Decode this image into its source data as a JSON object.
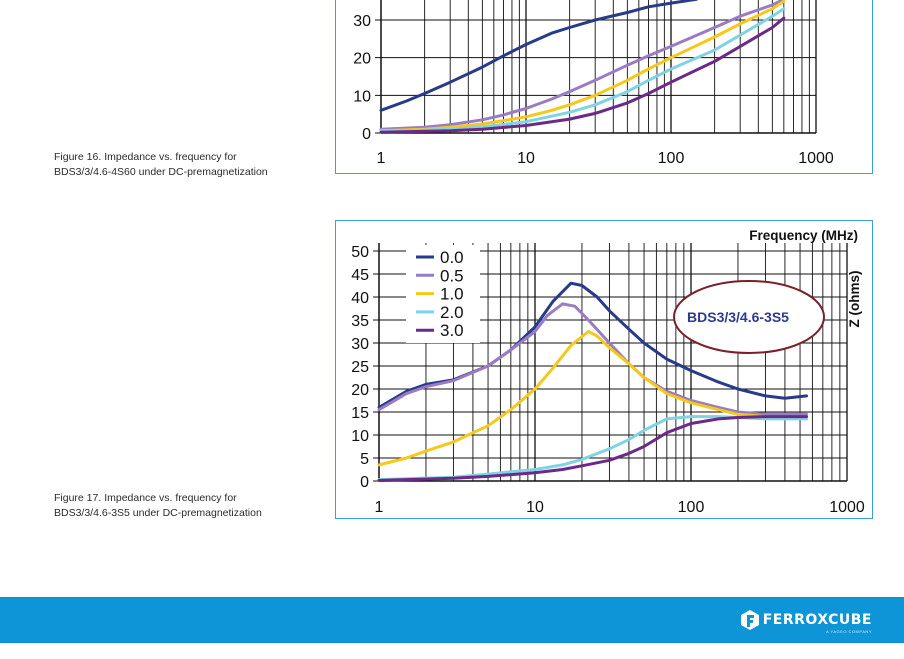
{
  "figures": [
    {
      "caption_line1": "Figure 16. Impedance vs. frequency for",
      "caption_line2": "BDS3/3/4.6-4S60 under DC-premagnetization"
    },
    {
      "caption_line1": "Figure 17. Impedance vs. frequency for",
      "caption_line2": "BDS3/3/4.6-3S5 under DC-premagnetization"
    }
  ],
  "chart_data": [
    {
      "type": "line",
      "title": "",
      "xlabel": "",
      "ylabel": "",
      "x_scale": "log",
      "xlim": [
        1,
        1000
      ],
      "x_tick_labels": [
        "1",
        "10",
        "100",
        "1000"
      ],
      "y_tick_labels": [
        "0",
        "10",
        "20",
        "30"
      ],
      "grid": true,
      "series": [
        {
          "color": "#283a8a",
          "points": [
            [
              1,
              6
            ],
            [
              1.5,
              8.5
            ],
            [
              2,
              10.5
            ],
            [
              3,
              13.5
            ],
            [
              5,
              17.5
            ],
            [
              7,
              20.5
            ],
            [
              10,
              23.5
            ],
            [
              15,
              26.5
            ],
            [
              20,
              28
            ],
            [
              30,
              30
            ],
            [
              50,
              32
            ],
            [
              70,
              33.5
            ],
            [
              100,
              34.5
            ],
            [
              150,
              35.5
            ]
          ]
        },
        {
          "color": "#9a7cc4",
          "points": [
            [
              1,
              1
            ],
            [
              2,
              1.5
            ],
            [
              3,
              2.2
            ],
            [
              5,
              3.5
            ],
            [
              7,
              4.8
            ],
            [
              10,
              6.5
            ],
            [
              15,
              9
            ],
            [
              20,
              11
            ],
            [
              30,
              14
            ],
            [
              50,
              18
            ],
            [
              70,
              20.5
            ],
            [
              100,
              23
            ],
            [
              200,
              28
            ],
            [
              300,
              31
            ],
            [
              500,
              34
            ],
            [
              600,
              35.5
            ]
          ]
        },
        {
          "color": "#f5c81b",
          "points": [
            [
              1,
              0.6
            ],
            [
              2,
              1
            ],
            [
              3,
              1.5
            ],
            [
              5,
              2.4
            ],
            [
              7,
              3.3
            ],
            [
              10,
              4.3
            ],
            [
              15,
              6
            ],
            [
              20,
              7.5
            ],
            [
              30,
              10
            ],
            [
              50,
              14
            ],
            [
              70,
              17
            ],
            [
              100,
              20
            ],
            [
              200,
              25.5
            ],
            [
              300,
              29
            ],
            [
              500,
              33
            ],
            [
              600,
              35
            ]
          ]
        },
        {
          "color": "#7fd3e3",
          "points": [
            [
              1,
              0.4
            ],
            [
              3,
              1
            ],
            [
              5,
              1.6
            ],
            [
              10,
              3
            ],
            [
              20,
              5.5
            ],
            [
              30,
              7.5
            ],
            [
              50,
              11
            ],
            [
              70,
              14
            ],
            [
              100,
              17
            ],
            [
              200,
              22
            ],
            [
              300,
              26
            ],
            [
              500,
              31
            ],
            [
              600,
              33
            ]
          ]
        },
        {
          "color": "#6a2a86",
          "points": [
            [
              1,
              0.2
            ],
            [
              3,
              0.6
            ],
            [
              5,
              1
            ],
            [
              10,
              2
            ],
            [
              20,
              3.7
            ],
            [
              30,
              5.2
            ],
            [
              50,
              8
            ],
            [
              70,
              10.5
            ],
            [
              100,
              13.5
            ],
            [
              200,
              19
            ],
            [
              300,
              23
            ],
            [
              500,
              28
            ],
            [
              600,
              30.5
            ]
          ]
        }
      ]
    },
    {
      "type": "line",
      "title": "",
      "xlabel": "Frequency (MHz)",
      "ylabel": "Z (ohms)",
      "x_scale": "log",
      "xlim": [
        1,
        1000
      ],
      "ylim": [
        0,
        50
      ],
      "x_tick_labels": [
        "1",
        "10",
        "100",
        "1000"
      ],
      "y_tick_labels": [
        "0",
        "5",
        "10",
        "15",
        "20",
        "25",
        "30",
        "35",
        "40",
        "45",
        "50"
      ],
      "grid": true,
      "legend_placement": "top-left",
      "annotation": "BDS3/3/4.6-3S5",
      "annotation_color": "#2f3a8f",
      "ellipse_color": "#7a1f2b",
      "series": [
        {
          "name": "0.0",
          "color": "#283a8a",
          "points": [
            [
              1,
              16
            ],
            [
              1.5,
              19.5
            ],
            [
              2,
              21
            ],
            [
              3,
              22
            ],
            [
              5,
              25
            ],
            [
              7,
              28.5
            ],
            [
              10,
              33.5
            ],
            [
              13,
              39
            ],
            [
              17,
              43
            ],
            [
              20,
              42.5
            ],
            [
              25,
              40
            ],
            [
              30,
              37
            ],
            [
              40,
              33
            ],
            [
              50,
              30
            ],
            [
              70,
              26.5
            ],
            [
              100,
              24
            ],
            [
              150,
              21.5
            ],
            [
              200,
              20
            ],
            [
              300,
              18.5
            ],
            [
              400,
              18
            ],
            [
              550,
              18.5
            ]
          ]
        },
        {
          "name": "0.5",
          "color": "#9a7cc4",
          "points": [
            [
              1,
              15.5
            ],
            [
              1.5,
              19
            ],
            [
              2,
              20.5
            ],
            [
              3,
              21.8
            ],
            [
              5,
              25
            ],
            [
              7,
              28.5
            ],
            [
              10,
              32.5
            ],
            [
              12,
              36
            ],
            [
              15,
              38.5
            ],
            [
              18,
              38
            ],
            [
              22,
              35
            ],
            [
              30,
              30
            ],
            [
              40,
              25.5
            ],
            [
              50,
              22.5
            ],
            [
              70,
              19.5
            ],
            [
              100,
              17.5
            ],
            [
              150,
              16
            ],
            [
              200,
              15
            ],
            [
              300,
              14.5
            ],
            [
              550,
              14.5
            ]
          ]
        },
        {
          "name": "1.0",
          "color": "#f5c81b",
          "points": [
            [
              1,
              3.5
            ],
            [
              1.5,
              5
            ],
            [
              2,
              6.5
            ],
            [
              3,
              8.5
            ],
            [
              5,
              12
            ],
            [
              7,
              15.5
            ],
            [
              10,
              20
            ],
            [
              13,
              24.5
            ],
            [
              17,
              29.5
            ],
            [
              22,
              32.5
            ],
            [
              25,
              31.5
            ],
            [
              30,
              29
            ],
            [
              40,
              25.5
            ],
            [
              50,
              22.5
            ],
            [
              70,
              19
            ],
            [
              100,
              17
            ],
            [
              150,
              15.5
            ],
            [
              200,
              14.5
            ],
            [
              300,
              14
            ],
            [
              550,
              14
            ]
          ]
        },
        {
          "name": "2.0",
          "color": "#7fd3e3",
          "points": [
            [
              1,
              0.3
            ],
            [
              3,
              0.8
            ],
            [
              5,
              1.5
            ],
            [
              10,
              2.5
            ],
            [
              15,
              3.5
            ],
            [
              20,
              4.7
            ],
            [
              30,
              7
            ],
            [
              40,
              9
            ],
            [
              50,
              11
            ],
            [
              70,
              13.5
            ],
            [
              100,
              14
            ],
            [
              150,
              14
            ],
            [
              200,
              13.8
            ],
            [
              300,
              13.5
            ],
            [
              550,
              13.5
            ]
          ]
        },
        {
          "name": "3.0",
          "color": "#6a2a86",
          "points": [
            [
              1,
              0.1
            ],
            [
              3,
              0.6
            ],
            [
              5,
              1
            ],
            [
              10,
              1.8
            ],
            [
              15,
              2.5
            ],
            [
              20,
              3.3
            ],
            [
              30,
              4.5
            ],
            [
              40,
              6
            ],
            [
              50,
              7.5
            ],
            [
              70,
              10.5
            ],
            [
              100,
              12.5
            ],
            [
              150,
              13.5
            ],
            [
              200,
              13.8
            ],
            [
              300,
              14
            ],
            [
              550,
              14
            ]
          ]
        }
      ]
    }
  ],
  "footer": {
    "brand": "FERROXCUBE",
    "tagline": "A YAGEO COMPANY",
    "background": "#0e95d8"
  }
}
